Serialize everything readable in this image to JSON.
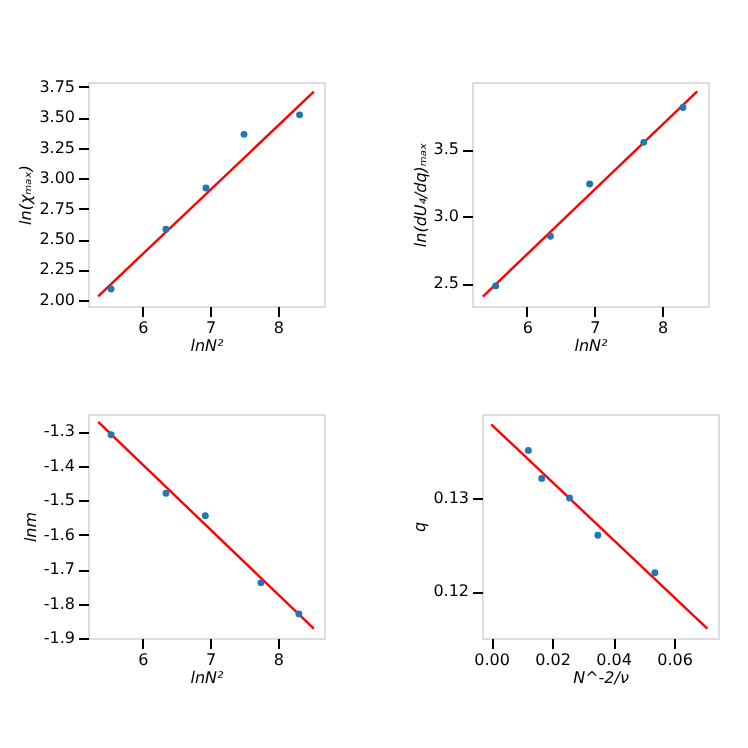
{
  "chart_data": [
    {
      "type": "scatter",
      "xlabel": "lnN²",
      "ylabel": "ln(χₘₐₓ)",
      "xlim": [
        5.2,
        8.68
      ],
      "ylim": [
        1.95,
        3.79
      ],
      "xticks": [
        6,
        7,
        8
      ],
      "yticks": [
        {
          "value": 2.0,
          "label": "2.00"
        },
        2.25,
        {
          "value": 2.5,
          "label": "2.50"
        },
        2.75,
        {
          "value": 3.0,
          "label": "3.00"
        },
        3.25,
        {
          "value": 3.5,
          "label": "3.50"
        },
        3.75
      ],
      "grid": false,
      "series": [
        {
          "type": "scatter",
          "marker": "circle",
          "color": "#1f77b4",
          "x": [
            5.54,
            6.35,
            6.94,
            7.5,
            8.32
          ],
          "values": [
            2.09,
            2.58,
            2.92,
            3.36,
            3.52
          ]
        },
        {
          "type": "line",
          "line_style": "solid",
          "color": "#ff0000",
          "x": [
            5.35,
            8.53
          ],
          "values": [
            2.03,
            3.71
          ]
        }
      ]
    },
    {
      "type": "scatter",
      "xlabel": "lnN²",
      "ylabel": "ln(dU₄/dq)ₘₐₓ",
      "xlim": [
        5.19,
        8.68
      ],
      "ylim": [
        2.33,
        4.0
      ],
      "xticks": [
        6,
        7,
        8
      ],
      "yticks": [
        2.5,
        {
          "value": 3.0,
          "label": "3.0"
        },
        3.5
      ],
      "grid": false,
      "series": [
        {
          "type": "scatter",
          "marker": "circle",
          "color": "#1f77b4",
          "x": [
            5.54,
            6.35,
            6.93,
            7.73,
            8.31
          ],
          "values": [
            2.48,
            2.85,
            3.24,
            3.55,
            3.81
          ]
        },
        {
          "type": "line",
          "line_style": "solid",
          "color": "#ff0000",
          "x": [
            5.35,
            8.52
          ],
          "values": [
            2.4,
            3.93
          ]
        }
      ]
    },
    {
      "type": "scatter",
      "xlabel": "lnN²",
      "ylabel": "lnm",
      "xlim": [
        5.2,
        8.68
      ],
      "ylim": [
        -1.9,
        -1.25
      ],
      "xticks": [
        6,
        7,
        8
      ],
      "yticks": [
        -1.9,
        -1.8,
        -1.7,
        -1.6,
        -1.5,
        -1.4,
        -1.3
      ],
      "grid": false,
      "series": [
        {
          "type": "scatter",
          "marker": "circle",
          "color": "#1f77b4",
          "x": [
            5.54,
            6.35,
            6.93,
            7.75,
            8.31
          ],
          "values": [
            -1.31,
            -1.48,
            -1.545,
            -1.74,
            -1.83
          ]
        },
        {
          "type": "line",
          "line_style": "solid",
          "color": "#ff0000",
          "x": [
            5.35,
            8.53
          ],
          "values": [
            -1.273,
            -1.873
          ]
        }
      ]
    },
    {
      "type": "scatter",
      "xlabel": "N^-2/ν",
      "ylabel": "q",
      "xlim": [
        -0.003,
        0.0744
      ],
      "ylim": [
        0.115,
        0.139
      ],
      "xticks": [
        {
          "value": 0.0,
          "label": "0.00"
        },
        0.02,
        0.04,
        0.06
      ],
      "yticks": [
        0.12,
        0.13
      ],
      "grid": false,
      "series": [
        {
          "type": "scatter",
          "marker": "circle",
          "color": "#1f77b4",
          "x": [
            0.0122,
            0.0166,
            0.0257,
            0.035,
            0.0537
          ],
          "values": [
            0.1351,
            0.1321,
            0.13,
            0.126,
            0.122
          ]
        },
        {
          "type": "line",
          "line_style": "solid",
          "color": "#ff0000",
          "x": [
            0.0,
            0.0709
          ],
          "values": [
            0.1379,
            0.116
          ]
        }
      ]
    }
  ]
}
